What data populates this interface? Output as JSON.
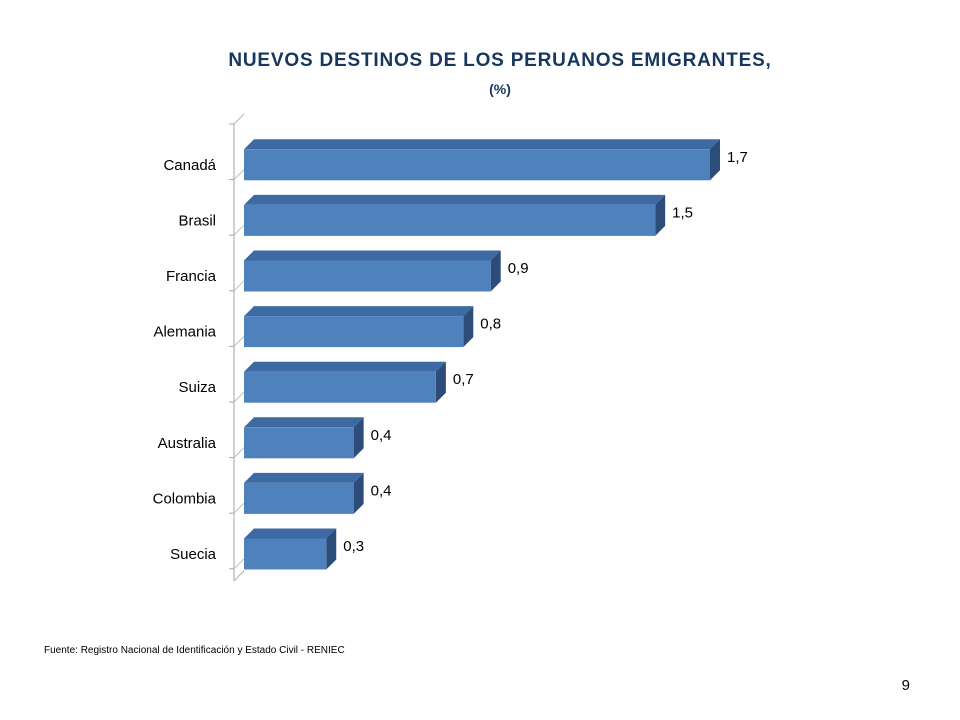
{
  "slide": {
    "title": "NUEVOS DESTINOS DE LOS PERUANOS EMIGRANTES,",
    "subtitle": "(%)",
    "source": "Fuente: Registro Nacional de Identificación  y Estado Civil - RENIEC",
    "page_number": "9"
  },
  "colors": {
    "title": "#17375e",
    "bar_front": "#4f81bd",
    "bar_top": "#3d6aa3",
    "bar_side": "#2c4d7a"
  },
  "chart_data": {
    "type": "bar",
    "orientation": "horizontal",
    "style": "3d",
    "categories": [
      "Canadá",
      "Brasil",
      "Francia",
      "Alemania",
      "Suiza",
      "Australia",
      "Colombia",
      "Suecia"
    ],
    "values": [
      1.7,
      1.5,
      0.9,
      0.8,
      0.7,
      0.4,
      0.4,
      0.3
    ],
    "value_labels": [
      "1,7",
      "1,5",
      "0,9",
      "0,8",
      "0,7",
      "0,4",
      "0,4",
      "0,3"
    ],
    "xlim": [
      0,
      1.7
    ],
    "grid": false,
    "legend": "none"
  }
}
